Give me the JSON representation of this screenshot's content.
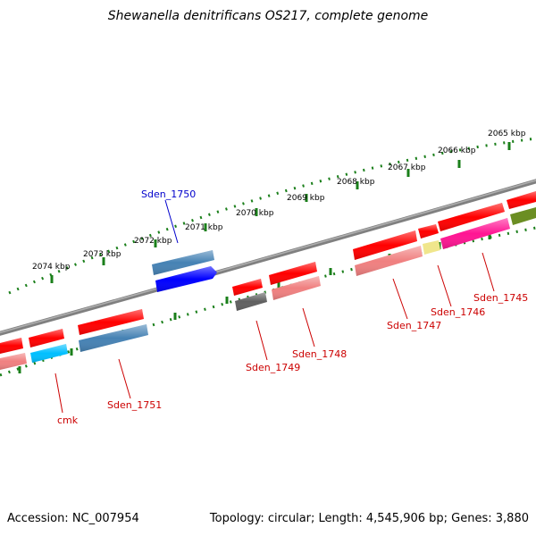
{
  "title": "Shewanella denitrificans OS217, complete genome",
  "footer": {
    "accession": "Accession: NC_007954",
    "summary": "Topology: circular; Length: 4,545,906 bp; Genes: 3,880"
  },
  "scale_labels": [
    "2065 kbp",
    "2066 kbp",
    "2067 kbp",
    "2068 kbp",
    "2069 kbp",
    "2070 kbp",
    "2071 kbp",
    "2072 kbp",
    "2073 kbp",
    "2074 kbp"
  ],
  "gene_labels": [
    "Sden_1750",
    "Sden_1745",
    "Sden_1746",
    "Sden_1747",
    "Sden_1748",
    "Sden_1749",
    "Sden_1751",
    "cmk"
  ],
  "colors": {
    "backbone": "#808080",
    "tick": "#1a7f1a",
    "label_outer": "#0000cc",
    "label_inner": "#cc0000",
    "red": "#ff0000",
    "pink": "#f08080",
    "steel_blue": "#4682b4",
    "blue": "#0000ff",
    "cyan": "#00bfff",
    "gray": "#606060",
    "khaki": "#f0e68c",
    "magenta": "#ff1493",
    "olive": "#6b8e23"
  }
}
